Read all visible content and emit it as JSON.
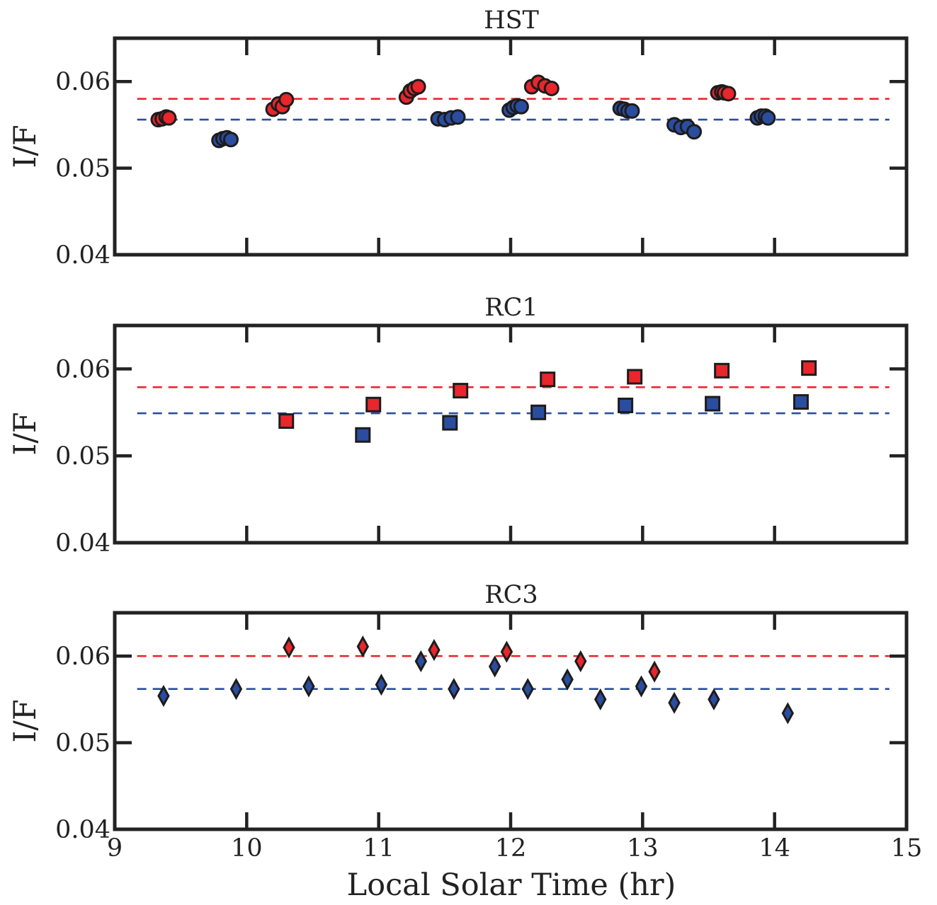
{
  "chart_data": [
    {
      "type": "scatter",
      "title": "HST",
      "ylabel": "I/F",
      "xlabel": "",
      "xlim": [
        9,
        15
      ],
      "ylim": [
        0.04,
        0.065
      ],
      "xticks": [
        10,
        11,
        12,
        13,
        14
      ],
      "xtick_labels": [],
      "yticks": [
        0.04,
        0.05,
        0.06
      ],
      "ytick_labels": [
        "0.04",
        "0.05",
        "0.06"
      ],
      "marker": "circle",
      "reference_lines": [
        {
          "color": "#e8262c",
          "y": 0.058
        },
        {
          "color": "#2b4da0",
          "y": 0.0556
        }
      ],
      "series": [
        {
          "color": "#e8262c",
          "points": [
            [
              9.33,
              0.0556
            ],
            [
              9.36,
              0.0557
            ],
            [
              9.39,
              0.0559
            ],
            [
              9.41,
              0.0558
            ],
            [
              10.2,
              0.0568
            ],
            [
              10.24,
              0.0574
            ],
            [
              10.27,
              0.0571
            ],
            [
              10.3,
              0.0579
            ],
            [
              11.21,
              0.0582
            ],
            [
              11.24,
              0.0589
            ],
            [
              11.27,
              0.0592
            ],
            [
              11.3,
              0.0594
            ],
            [
              12.16,
              0.0594
            ],
            [
              12.21,
              0.0599
            ],
            [
              12.26,
              0.0595
            ],
            [
              12.31,
              0.0592
            ],
            [
              13.57,
              0.0587
            ],
            [
              13.6,
              0.0588
            ],
            [
              13.62,
              0.0587
            ],
            [
              13.65,
              0.0586
            ]
          ]
        },
        {
          "color": "#2b4da0",
          "points": [
            [
              9.79,
              0.0532
            ],
            [
              9.82,
              0.0534
            ],
            [
              9.85,
              0.0535
            ],
            [
              9.88,
              0.0533
            ],
            [
              11.45,
              0.0557
            ],
            [
              11.5,
              0.0556
            ],
            [
              11.55,
              0.0558
            ],
            [
              11.6,
              0.0559
            ],
            [
              11.99,
              0.0567
            ],
            [
              12.02,
              0.057
            ],
            [
              12.05,
              0.0572
            ],
            [
              12.08,
              0.0571
            ],
            [
              12.83,
              0.0569
            ],
            [
              12.86,
              0.0568
            ],
            [
              12.89,
              0.0566
            ],
            [
              12.92,
              0.0566
            ],
            [
              13.24,
              0.055
            ],
            [
              13.29,
              0.0547
            ],
            [
              13.34,
              0.0548
            ],
            [
              13.39,
              0.0542
            ],
            [
              13.87,
              0.0558
            ],
            [
              13.9,
              0.056
            ],
            [
              13.93,
              0.056
            ],
            [
              13.95,
              0.0558
            ]
          ]
        }
      ]
    },
    {
      "type": "scatter",
      "title": "RC1",
      "ylabel": "I/F",
      "xlabel": "",
      "xlim": [
        9,
        15
      ],
      "ylim": [
        0.04,
        0.065
      ],
      "xticks": [
        10,
        11,
        12,
        13,
        14
      ],
      "xtick_labels": [],
      "yticks": [
        0.04,
        0.05,
        0.06
      ],
      "ytick_labels": [
        "0.04",
        "0.05",
        "0.06"
      ],
      "marker": "square",
      "reference_lines": [
        {
          "color": "#e8262c",
          "y": 0.0579
        },
        {
          "color": "#2b4da0",
          "y": 0.0549
        }
      ],
      "series": [
        {
          "color": "#e8262c",
          "points": [
            [
              10.3,
              0.054
            ],
            [
              10.96,
              0.0559
            ],
            [
              11.62,
              0.0575
            ],
            [
              12.28,
              0.0588
            ],
            [
              12.94,
              0.0591
            ],
            [
              13.6,
              0.0598
            ],
            [
              14.26,
              0.0601
            ]
          ]
        },
        {
          "color": "#2b4da0",
          "points": [
            [
              10.88,
              0.0524
            ],
            [
              11.54,
              0.0538
            ],
            [
              12.21,
              0.055
            ],
            [
              12.87,
              0.0558
            ],
            [
              13.53,
              0.056
            ],
            [
              14.2,
              0.0562
            ]
          ]
        }
      ]
    },
    {
      "type": "scatter",
      "title": "RC3",
      "ylabel": "I/F",
      "xlabel": "Local Solar Time (hr)",
      "xlim": [
        9,
        15
      ],
      "ylim": [
        0.04,
        0.065
      ],
      "xticks": [
        9,
        10,
        11,
        12,
        13,
        14,
        15
      ],
      "xtick_labels": [
        "9",
        "10",
        "11",
        "12",
        "13",
        "14",
        "15"
      ],
      "yticks": [
        0.04,
        0.05,
        0.06
      ],
      "ytick_labels": [
        "0.04",
        "0.05",
        "0.06"
      ],
      "marker": "diamond",
      "reference_lines": [
        {
          "color": "#e8262c",
          "y": 0.06
        },
        {
          "color": "#2b4da0",
          "y": 0.0562
        }
      ],
      "series": [
        {
          "color": "#e8262c",
          "points": [
            [
              10.32,
              0.061
            ],
            [
              10.88,
              0.0611
            ],
            [
              11.42,
              0.0607
            ],
            [
              11.97,
              0.0605
            ],
            [
              12.53,
              0.0594
            ],
            [
              13.09,
              0.0582
            ]
          ]
        },
        {
          "color": "#2b4da0",
          "points": [
            [
              9.37,
              0.0554
            ],
            [
              9.92,
              0.0562
            ],
            [
              10.47,
              0.0565
            ],
            [
              11.02,
              0.0567
            ],
            [
              11.32,
              0.0594
            ],
            [
              11.57,
              0.0562
            ],
            [
              11.88,
              0.0588
            ],
            [
              12.13,
              0.0562
            ],
            [
              12.43,
              0.0573
            ],
            [
              12.68,
              0.055
            ],
            [
              12.99,
              0.0565
            ],
            [
              13.24,
              0.0546
            ],
            [
              13.54,
              0.055
            ],
            [
              14.1,
              0.0534
            ]
          ]
        }
      ]
    }
  ]
}
